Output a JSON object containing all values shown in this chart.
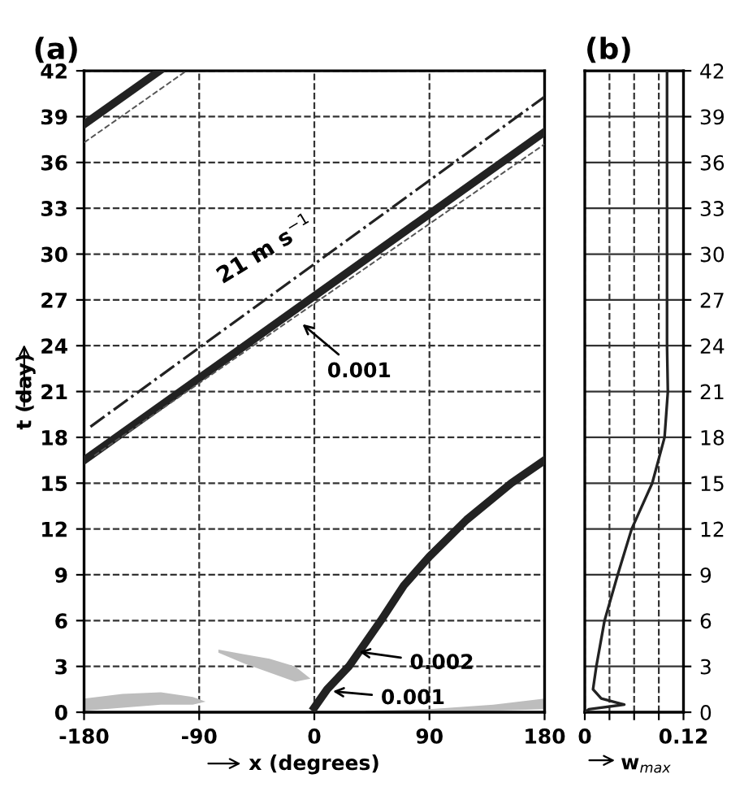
{
  "chart_data": [
    {
      "type": "line",
      "title": "(a)",
      "xlabel": "x (degrees)",
      "ylabel": "t (day)",
      "xlim": [
        -180,
        180
      ],
      "xticks": [
        -180,
        -90,
        0,
        90,
        180
      ],
      "ylim": [
        0,
        42
      ],
      "yticks": [
        0,
        3,
        6,
        9,
        12,
        15,
        18,
        21,
        24,
        27,
        30,
        33,
        36,
        39,
        42
      ],
      "grid": true,
      "series": [
        {
          "type": "area",
          "color": "#bdbdbd",
          "x": [
            -180,
            -150,
            -120,
            -95,
            -85,
            -95,
            -120,
            -150,
            -180
          ],
          "values": [
            0.9,
            1.2,
            1.3,
            1.0,
            0.7,
            0.5,
            0.5,
            0.3,
            0.1
          ]
        },
        {
          "type": "area",
          "color": "#bdbdbd",
          "x": [
            -75,
            -55,
            -35,
            -15,
            -3,
            -15,
            -35,
            -55,
            -75
          ],
          "values": [
            4.1,
            3.8,
            3.5,
            3.0,
            2.2,
            2.0,
            2.6,
            3.2,
            3.9
          ]
        },
        {
          "type": "area",
          "color": "#bdbdbd",
          "x": [
            40,
            90,
            140,
            180,
            180,
            140,
            90,
            40
          ],
          "values": [
            0.1,
            0.2,
            0.5,
            0.9,
            0.2,
            0.1,
            0,
            0
          ]
        },
        {
          "type": "line",
          "color": "#222222",
          "line_style": "solid",
          "x": [
            -180,
            180
          ],
          "values": [
            16.5,
            38
          ]
        },
        {
          "type": "line",
          "color": "#222222",
          "line_style": "solid",
          "x": [
            -180,
            -121
          ],
          "values": [
            38.5,
            42
          ]
        },
        {
          "type": "line",
          "color": "#555555",
          "line_style": "dashed",
          "x": [
            -172,
            180
          ],
          "values": [
            16.8,
            37.2
          ]
        },
        {
          "type": "line",
          "color": "#555555",
          "line_style": "dashed",
          "x": [
            -180,
            -100
          ],
          "values": [
            37.3,
            42
          ]
        },
        {
          "type": "line",
          "color": "#222222",
          "line_style": "dashdot",
          "x": [
            -175,
            180
          ],
          "values": [
            18.7,
            40.3
          ]
        },
        {
          "type": "line",
          "color": "#222222",
          "line_style": "solid",
          "x": [
            0,
            10,
            27,
            52,
            70,
            90,
            119,
            154,
            180
          ],
          "values": [
            0.3,
            1.5,
            3,
            6,
            8.3,
            10.2,
            12.6,
            15,
            16.5
          ]
        }
      ],
      "annotations": [
        "21 m s$^{−1}$",
        "0.001",
        {
          "text": "0.002",
          "x": 31.6,
          "y": 4
        },
        {
          "text": "0.001",
          "x": 11,
          "y": 1.4
        }
      ]
    },
    {
      "type": "line",
      "title": "(b)",
      "xlabel": "w$_{max}$",
      "xlim": [
        0,
        0.12
      ],
      "xticks": [
        0,
        {
          "value": 0.03,
          "label": null
        },
        {
          "value": 0.06,
          "label": null
        },
        {
          "value": 0.09,
          "label": null
        },
        0.12
      ],
      "ylim": [
        0,
        42
      ],
      "yticks": [
        0,
        3,
        6,
        9,
        12,
        15,
        18,
        21,
        24,
        27,
        30,
        33,
        36,
        39,
        42
      ],
      "grid": true,
      "series": [
        {
          "color": "#222222",
          "x": [
            0,
            0.005,
            0.048,
            0.02,
            0.01,
            0.014,
            0.024,
            0.04,
            0.057,
            0.082,
            0.097,
            0.101,
            0.1,
            0.1
          ],
          "values": [
            0,
            0.2,
            0.5,
            0.9,
            1.5,
            3,
            6,
            9,
            12,
            15,
            18,
            21,
            24,
            42
          ]
        }
      ]
    }
  ]
}
